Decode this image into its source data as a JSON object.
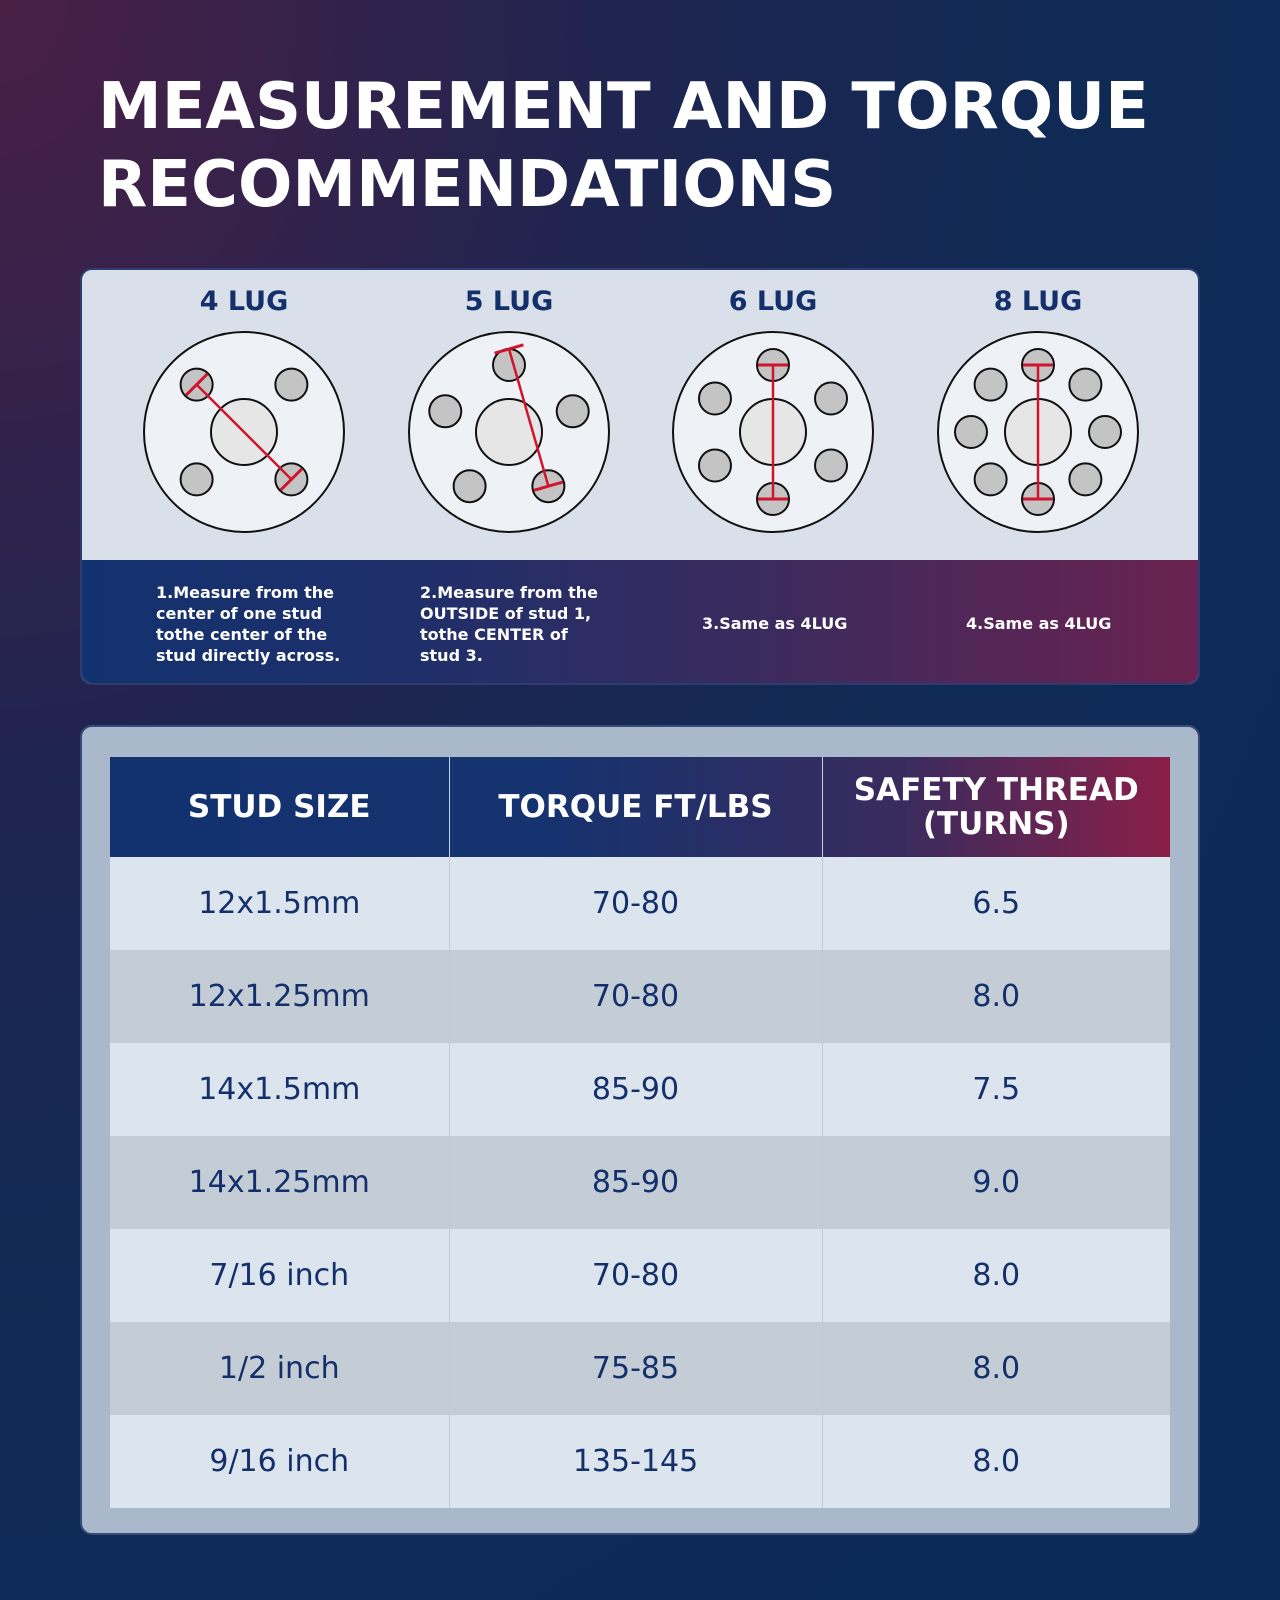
{
  "title": {
    "line1": "MEASUREMENT AND TORQUE",
    "line2": "RECOMMENDATIONS"
  },
  "colors": {
    "navy": "#13306b",
    "crimson": "#8a1f48",
    "red_line": "#d0142c",
    "stud": "#c4c4c4"
  },
  "lugs": [
    {
      "label": "4 LUG",
      "studs": 4,
      "caption": [
        "1.Measure from the",
        "center of one stud",
        "tothe center of the",
        "stud directly across."
      ]
    },
    {
      "label": "5 LUG",
      "studs": 5,
      "caption": [
        "2.Measure from the",
        "OUTSIDE of stud 1,",
        "tothe CENTER of",
        "stud 3."
      ]
    },
    {
      "label": "6 LUG",
      "studs": 6,
      "caption": [
        "3.Same as 4LUG"
      ]
    },
    {
      "label": "8 LUG",
      "studs": 8,
      "caption": [
        "4.Same as 4LUG"
      ]
    }
  ],
  "table": {
    "headers": [
      "STUD SIZE",
      "TORQUE FT/LBS",
      "SAFETY THREAD",
      "(TURNS)"
    ],
    "rows": [
      [
        "12x1.5mm",
        "70-80",
        "6.5"
      ],
      [
        "12x1.25mm",
        "70-80",
        "8.0"
      ],
      [
        "14x1.5mm",
        "85-90",
        "7.5"
      ],
      [
        "14x1.25mm",
        "85-90",
        "9.0"
      ],
      [
        "7/16 inch",
        "70-80",
        "8.0"
      ],
      [
        "1/2 inch",
        "75-85",
        "8.0"
      ],
      [
        "9/16 inch",
        "135-145",
        "8.0"
      ]
    ]
  }
}
